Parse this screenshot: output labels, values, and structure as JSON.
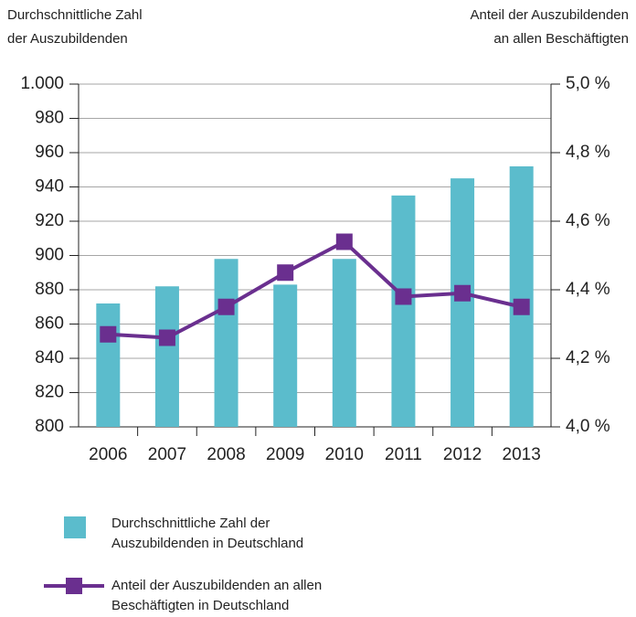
{
  "chart_data": {
    "type": "bar_line",
    "ylabel": [
      "Durchschnittliche Zahl",
      "der Auszubildenden"
    ],
    "y2label": [
      "Anteil der Auszubildenden",
      "an allen Beschäftigten"
    ],
    "categories": [
      "2006",
      "2007",
      "2008",
      "2009",
      "2010",
      "2011",
      "2012",
      "2013"
    ],
    "series": [
      {
        "name": "Durchschnittliche Zahl der Auszubildenden in Deutschland",
        "type": "bar",
        "color": "#5bbccc",
        "values": [
          872,
          882,
          898,
          883,
          898,
          935,
          945,
          952
        ]
      },
      {
        "name": "Anteil der Auszubildenden an allen Beschäftigten in Deutschland",
        "type": "line",
        "axis": "y2",
        "color": "#6a2f8f",
        "values": [
          4.27,
          4.26,
          4.35,
          4.45,
          4.54,
          4.38,
          4.39,
          4.35
        ]
      }
    ],
    "ylim": [
      800,
      1000
    ],
    "yticks": [
      800,
      820,
      840,
      860,
      880,
      900,
      920,
      940,
      960,
      980,
      {
        "value": 1000,
        "label": "1.000"
      }
    ],
    "y2lim": [
      4.0,
      5.0
    ],
    "y2ticks": [
      {
        "value": 4.0,
        "label": "4,0 %"
      },
      {
        "value": 4.2,
        "label": "4,2 %"
      },
      {
        "value": 4.4,
        "label": "4,4 %"
      },
      {
        "value": 4.6,
        "label": "4,6 %"
      },
      {
        "value": 4.8,
        "label": "4,8 %"
      },
      {
        "value": 5.0,
        "label": "5,0 %"
      }
    ],
    "grid": true
  }
}
